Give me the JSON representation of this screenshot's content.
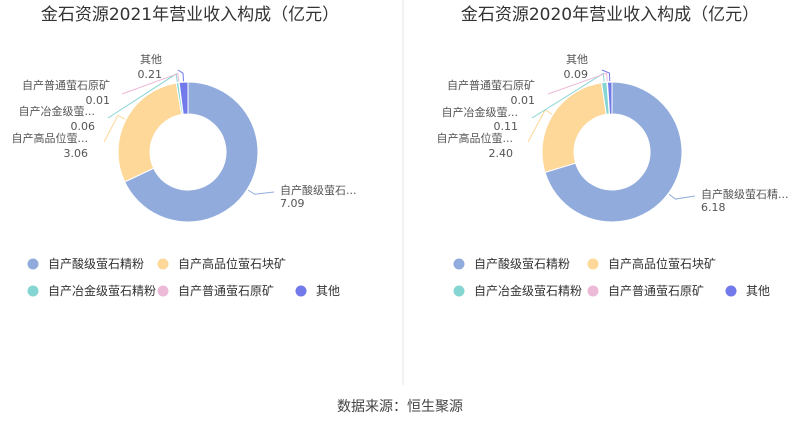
{
  "source_text": "数据来源：恒生聚源",
  "colors": {
    "series": [
      "#91acdc",
      "#fdd898",
      "#85d5d2",
      "#ecbad7",
      "#7179eb"
    ],
    "text": "#333333",
    "label": "#555555",
    "divider": "#e6e6e6"
  },
  "chart_data": [
    {
      "type": "pie",
      "title": "金石资源2021年营业收入构成（亿元）",
      "categories": [
        "自产酸级萤石精粉",
        "自产高品位萤石块矿",
        "自产冶金级萤石精粉",
        "自产普通萤石原矿",
        "其他"
      ],
      "values": [
        7.09,
        3.06,
        0.06,
        0.01,
        0.21
      ],
      "slice_labels": [
        "自产酸级萤石...",
        "自产高品位萤...",
        "自产冶金级萤...",
        "自产普通萤石原矿",
        "其他"
      ],
      "value_labels": [
        "7.09",
        "3.06",
        "0.06",
        "0.01",
        "0.21"
      ],
      "legend_position": "bottom"
    },
    {
      "type": "pie",
      "title": "金石资源2020年营业收入构成（亿元）",
      "categories": [
        "自产酸级萤石精粉",
        "自产高品位萤石块矿",
        "自产冶金级萤石精粉",
        "自产普通萤石原矿",
        "其他"
      ],
      "values": [
        6.18,
        2.4,
        0.11,
        0.01,
        0.09
      ],
      "slice_labels": [
        "自产酸级萤石精...",
        "自产高品位萤...",
        "自产冶金级萤...",
        "自产普通萤石原矿",
        "其他"
      ],
      "value_labels": [
        "6.18",
        "2.40",
        "0.11",
        "0.01",
        "0.09"
      ],
      "legend_position": "bottom"
    }
  ]
}
